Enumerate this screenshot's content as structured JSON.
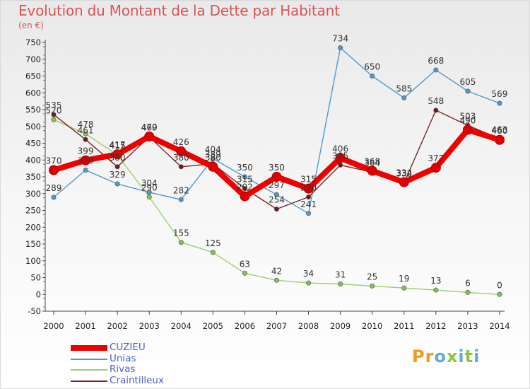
{
  "title": "Evolution du Montant de la Dette par Habitant",
  "subtitle": "(en €)",
  "logo": "Proxiti",
  "chart_data": {
    "type": "line",
    "title": "Evolution du Montant de la Dette par Habitant",
    "subtitle": "(en €)",
    "xlabel": "",
    "ylabel": "",
    "categories": [
      "2000",
      "2001",
      "2002",
      "2003",
      "2004",
      "2005",
      "2006",
      "2007",
      "2008",
      "2009",
      "2010",
      "2011",
      "2012",
      "2013",
      "2014"
    ],
    "ylim": [
      -50,
      750
    ],
    "yticks": [
      -50,
      0,
      50,
      100,
      150,
      200,
      250,
      300,
      350,
      400,
      450,
      500,
      550,
      600,
      650,
      700,
      750
    ],
    "grid": false,
    "legend_position": "bottom-left",
    "series": [
      {
        "name": "Unias",
        "color": "#4f98cf",
        "marker": "#4f98cf",
        "values": [
          289,
          370,
          329,
          304,
          282,
          404,
          350,
          297,
          241,
          734,
          650,
          585,
          668,
          605,
          569
        ]
      },
      {
        "name": "Rivas",
        "color": "#98d070",
        "marker": "#7fc44a",
        "values": [
          520,
          478,
          415,
          290,
          155,
          125,
          63,
          42,
          34,
          31,
          25,
          19,
          13,
          6,
          0
        ]
      },
      {
        "name": "Craintilleux",
        "color": "#7a2626",
        "marker": "#6b1b1b",
        "values": [
          535,
          461,
          380,
          469,
          380,
          389,
          315,
          254,
          290,
          385,
          364,
          332,
          548,
          503,
          463
        ]
      },
      {
        "name": "CUZIEU",
        "color": "#ef0000",
        "marker": "#ef0000",
        "values": [
          370,
          399,
          417,
          470,
          426,
          380,
          292,
          350,
          315,
          406,
          368,
          334,
          377,
          490,
          460
        ]
      }
    ]
  }
}
